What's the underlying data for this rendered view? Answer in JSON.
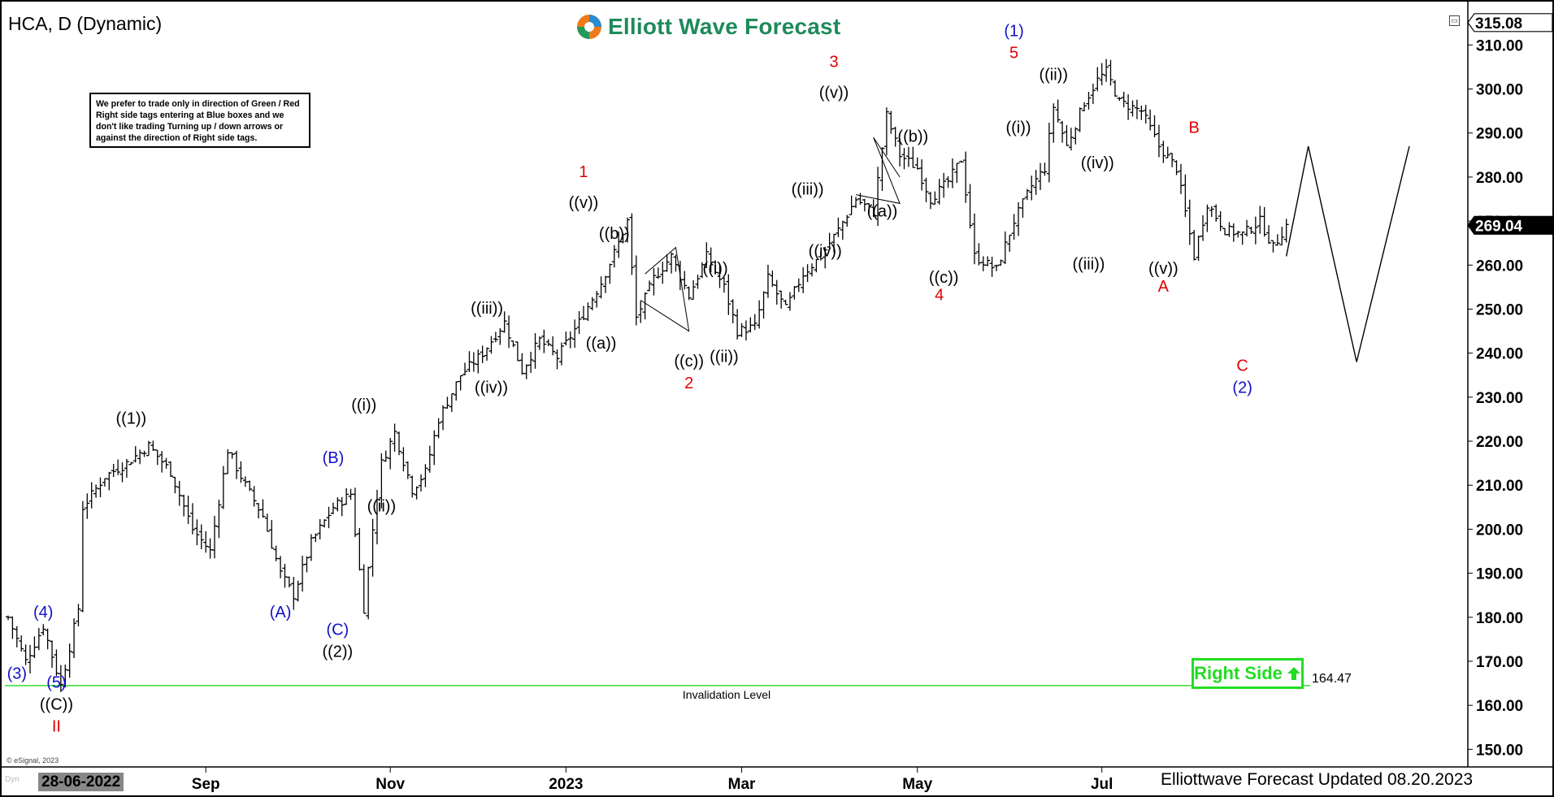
{
  "chart_title": "HCA, D (Dynamic)",
  "brand": {
    "name": "Elliott Wave Forecast"
  },
  "note_text": "We prefer to trade only in direction of Green / Red Right side tags entering at Blue boxes and we don't like trading Turning up / down arrows or against the direction of Right side tags.",
  "footer": {
    "brand_updated": "Elliottwave Forecast Updated 08.20.2023",
    "start_date": "28-06-2022",
    "copyright": "© eSignal, 2023",
    "dyn_label": "Dyn"
  },
  "right_side_tag": {
    "label": "Right Side"
  },
  "colors": {
    "blue": "#1010c8",
    "red": "#e00000",
    "black": "#000000",
    "green": "#22dd22",
    "bar": "#000000"
  },
  "chart_data": {
    "type": "ohlc",
    "symbol": "HCA",
    "timeframe": "D",
    "ylim": [
      146,
      318
    ],
    "xlim_index": [
      0,
      319
    ],
    "y_ticks": [
      "150.00",
      "160.00",
      "170.00",
      "180.00",
      "190.00",
      "200.00",
      "210.00",
      "220.00",
      "230.00",
      "240.00",
      "250.00",
      "260.00",
      "270.00",
      "280.00",
      "290.00",
      "300.00",
      "310.00"
    ],
    "x_ticks": [
      {
        "label": "Sep",
        "i": 45
      },
      {
        "label": "Nov",
        "i": 87
      },
      {
        "label": "2023",
        "i": 127
      },
      {
        "label": "Mar",
        "i": 167
      },
      {
        "label": "May",
        "i": 207
      },
      {
        "label": "Jul",
        "i": 249
      }
    ],
    "last_price": 269.04,
    "top_price": 315.08,
    "invalidation": {
      "value": 164.47,
      "label": "Invalidation Level",
      "value_label": "164.47"
    },
    "price_path": [
      [
        0,
        180
      ],
      [
        4,
        170
      ],
      [
        8,
        178
      ],
      [
        12,
        164.5
      ],
      [
        16,
        182
      ],
      [
        17,
        205
      ],
      [
        22,
        212
      ],
      [
        27,
        215
      ],
      [
        32,
        219
      ],
      [
        37,
        213
      ],
      [
        42,
        200
      ],
      [
        46,
        195
      ],
      [
        50,
        218
      ],
      [
        54,
        210
      ],
      [
        58,
        203
      ],
      [
        62,
        190
      ],
      [
        65,
        185
      ],
      [
        69,
        197
      ],
      [
        74,
        205
      ],
      [
        78,
        208
      ],
      [
        81,
        182
      ],
      [
        83,
        200
      ],
      [
        85,
        215
      ],
      [
        88,
        222
      ],
      [
        92,
        209
      ],
      [
        95,
        213
      ],
      [
        98,
        225
      ],
      [
        103,
        235
      ],
      [
        108,
        240
      ],
      [
        113,
        247
      ],
      [
        117,
        236
      ],
      [
        121,
        243
      ],
      [
        125,
        239
      ],
      [
        130,
        247
      ],
      [
        135,
        256
      ],
      [
        139,
        265
      ],
      [
        141,
        270
      ],
      [
        143,
        248
      ],
      [
        147,
        257
      ],
      [
        151,
        262
      ],
      [
        155,
        253
      ],
      [
        159,
        262
      ],
      [
        163,
        255
      ],
      [
        166,
        245
      ],
      [
        170,
        246
      ],
      [
        173,
        257
      ],
      [
        177,
        250
      ],
      [
        181,
        258
      ],
      [
        185,
        262
      ],
      [
        189,
        268
      ],
      [
        193,
        275
      ],
      [
        197,
        272
      ],
      [
        200,
        294
      ],
      [
        203,
        285
      ],
      [
        207,
        282
      ],
      [
        210,
        275
      ],
      [
        214,
        279
      ],
      [
        217,
        284
      ],
      [
        220,
        262
      ],
      [
        225,
        259
      ],
      [
        229,
        270
      ],
      [
        233,
        278
      ],
      [
        236,
        282
      ],
      [
        238,
        296
      ],
      [
        241,
        287
      ],
      [
        245,
        297
      ],
      [
        248,
        302
      ],
      [
        250,
        304
      ],
      [
        253,
        297
      ],
      [
        258,
        295
      ],
      [
        262,
        287
      ],
      [
        266,
        282
      ],
      [
        270,
        262
      ],
      [
        273,
        274
      ],
      [
        277,
        268
      ],
      [
        281,
        267
      ],
      [
        285,
        270
      ],
      [
        288,
        264
      ],
      [
        291,
        269.04
      ]
    ],
    "projection": [
      [
        291,
        262
      ],
      [
        296,
        287
      ],
      [
        307,
        238
      ],
      [
        319,
        287
      ]
    ],
    "wave_labels": [
      {
        "text": "(3)",
        "i": 2,
        "y": 166,
        "color": "blue"
      },
      {
        "text": "(4)",
        "i": 8,
        "y": 180,
        "color": "blue"
      },
      {
        "text": "(5)",
        "i": 11,
        "y": 164,
        "color": "blue"
      },
      {
        "text": "((C))",
        "i": 11,
        "y": 159,
        "color": "black"
      },
      {
        "text": "II",
        "i": 11,
        "y": 154,
        "color": "red"
      },
      {
        "text": "((1))",
        "i": 28,
        "y": 224,
        "color": "black"
      },
      {
        "text": "(A)",
        "i": 62,
        "y": 180,
        "color": "blue"
      },
      {
        "text": "(C)",
        "i": 75,
        "y": 176,
        "color": "blue"
      },
      {
        "text": "((2))",
        "i": 75,
        "y": 171,
        "color": "black"
      },
      {
        "text": "(B)",
        "i": 74,
        "y": 215,
        "color": "blue"
      },
      {
        "text": "((i))",
        "i": 81,
        "y": 227,
        "color": "black"
      },
      {
        "text": "((ii))",
        "i": 85,
        "y": 204,
        "color": "black"
      },
      {
        "text": "((iii))",
        "i": 109,
        "y": 249,
        "color": "black"
      },
      {
        "text": "((iv))",
        "i": 110,
        "y": 231,
        "color": "black"
      },
      {
        "text": "1",
        "i": 131,
        "y": 280,
        "color": "red"
      },
      {
        "text": "((v))",
        "i": 131,
        "y": 273,
        "color": "black"
      },
      {
        "text": "((b))",
        "i": 138,
        "y": 266,
        "color": "black"
      },
      {
        "text": "((a))",
        "i": 135,
        "y": 241,
        "color": "black"
      },
      {
        "text": "((c))",
        "i": 155,
        "y": 237,
        "color": "black"
      },
      {
        "text": "2",
        "i": 155,
        "y": 232,
        "color": "red"
      },
      {
        "text": "((i))",
        "i": 161,
        "y": 258,
        "color": "black"
      },
      {
        "text": "((ii))",
        "i": 163,
        "y": 238,
        "color": "black"
      },
      {
        "text": "((iii))",
        "i": 182,
        "y": 276,
        "color": "black"
      },
      {
        "text": "((iv))",
        "i": 186,
        "y": 262,
        "color": "black"
      },
      {
        "text": "3",
        "i": 188,
        "y": 305,
        "color": "red"
      },
      {
        "text": "((v))",
        "i": 188,
        "y": 298,
        "color": "black"
      },
      {
        "text": "((a))",
        "i": 199,
        "y": 271,
        "color": "black"
      },
      {
        "text": "((b))",
        "i": 206,
        "y": 288,
        "color": "black"
      },
      {
        "text": "((c))",
        "i": 213,
        "y": 256,
        "color": "black"
      },
      {
        "text": "4",
        "i": 212,
        "y": 252,
        "color": "red"
      },
      {
        "text": "(1)",
        "i": 229,
        "y": 312,
        "color": "blue"
      },
      {
        "text": "5",
        "i": 229,
        "y": 307,
        "color": "red"
      },
      {
        "text": "((i))",
        "i": 230,
        "y": 290,
        "color": "black"
      },
      {
        "text": "((ii))",
        "i": 238,
        "y": 302,
        "color": "black"
      },
      {
        "text": "((iv))",
        "i": 248,
        "y": 282,
        "color": "black"
      },
      {
        "text": "((iii))",
        "i": 246,
        "y": 259,
        "color": "black"
      },
      {
        "text": "((v))",
        "i": 263,
        "y": 258,
        "color": "black"
      },
      {
        "text": "A",
        "i": 263,
        "y": 254,
        "color": "red"
      },
      {
        "text": "B",
        "i": 270,
        "y": 290,
        "color": "red"
      },
      {
        "text": "C",
        "i": 281,
        "y": 236,
        "color": "red"
      },
      {
        "text": "(2)",
        "i": 281,
        "y": 231,
        "color": "blue"
      }
    ]
  }
}
